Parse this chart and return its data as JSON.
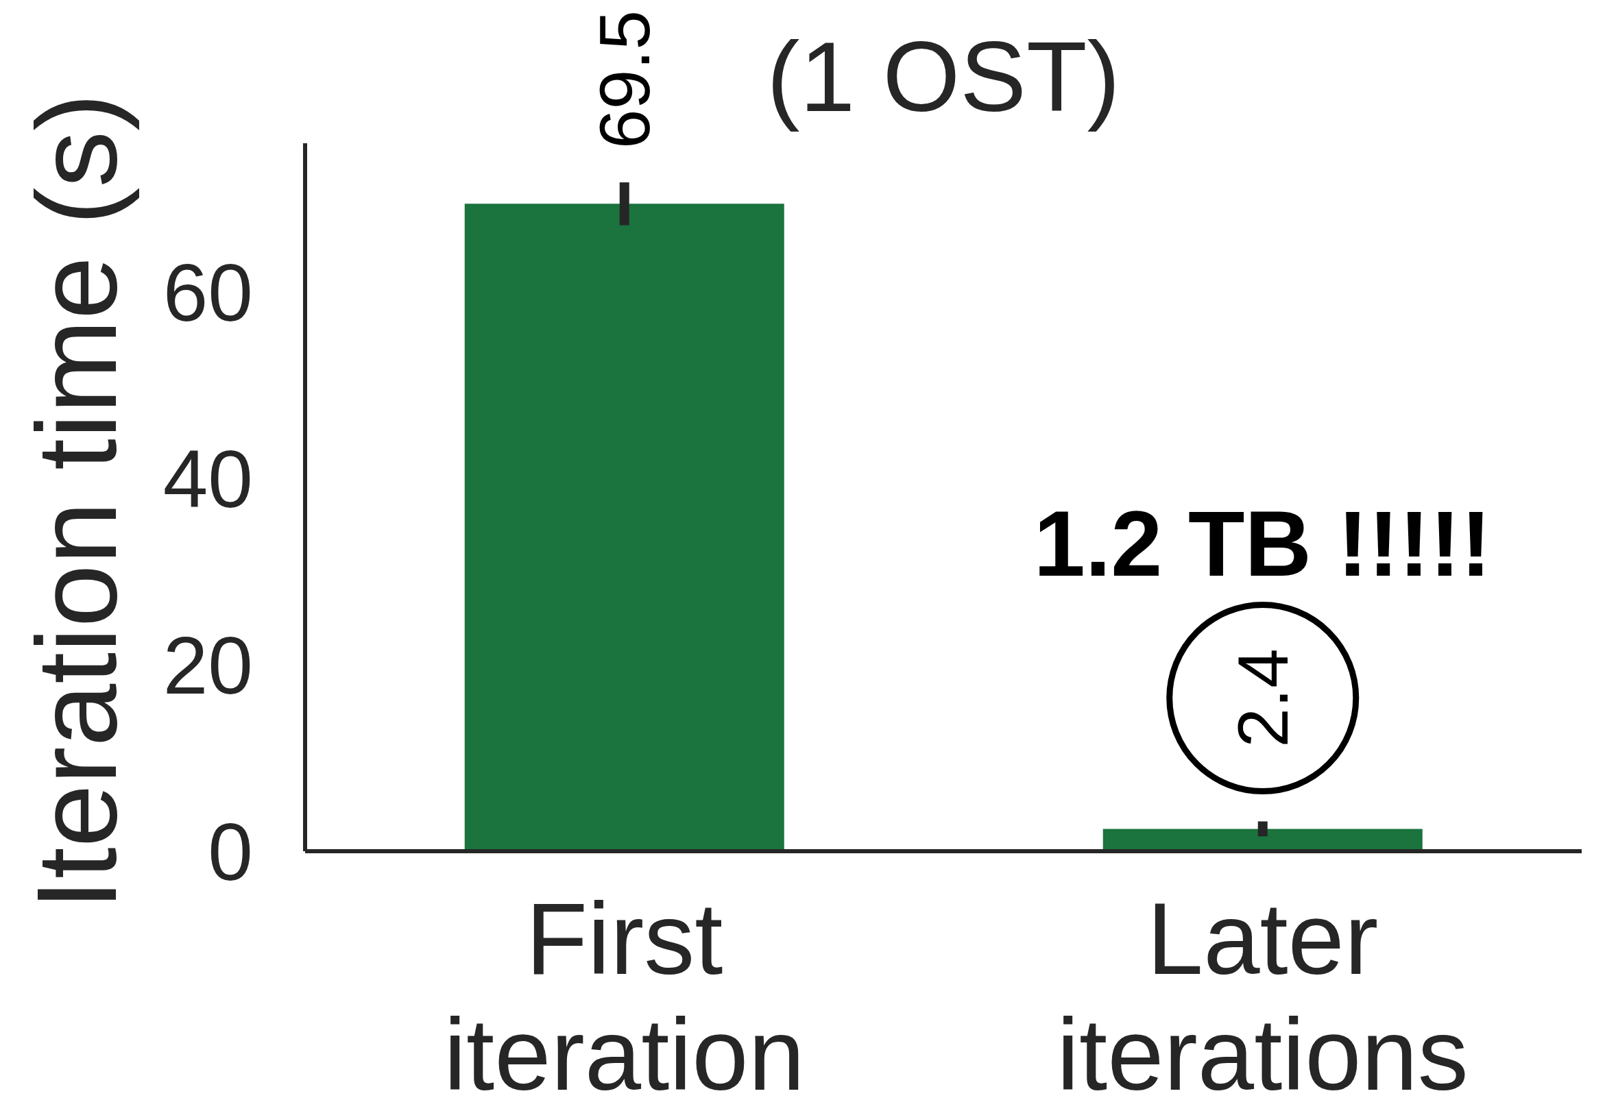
{
  "chart_data": {
    "type": "bar",
    "title": "(1 OST)",
    "ylabel": "Iteration time (s)",
    "categories": [
      "First iteration",
      "Later iterations"
    ],
    "values": [
      69.5,
      2.4
    ],
    "errors": [
      2.3,
      0.8
    ],
    "color": "#1b733e",
    "data_labels": true,
    "ylim": [
      0,
      76
    ],
    "yticks": [
      0,
      20,
      40,
      60
    ],
    "grid": false,
    "legend": false,
    "annotations": [
      "1.2 TB !!!!!"
    ]
  }
}
